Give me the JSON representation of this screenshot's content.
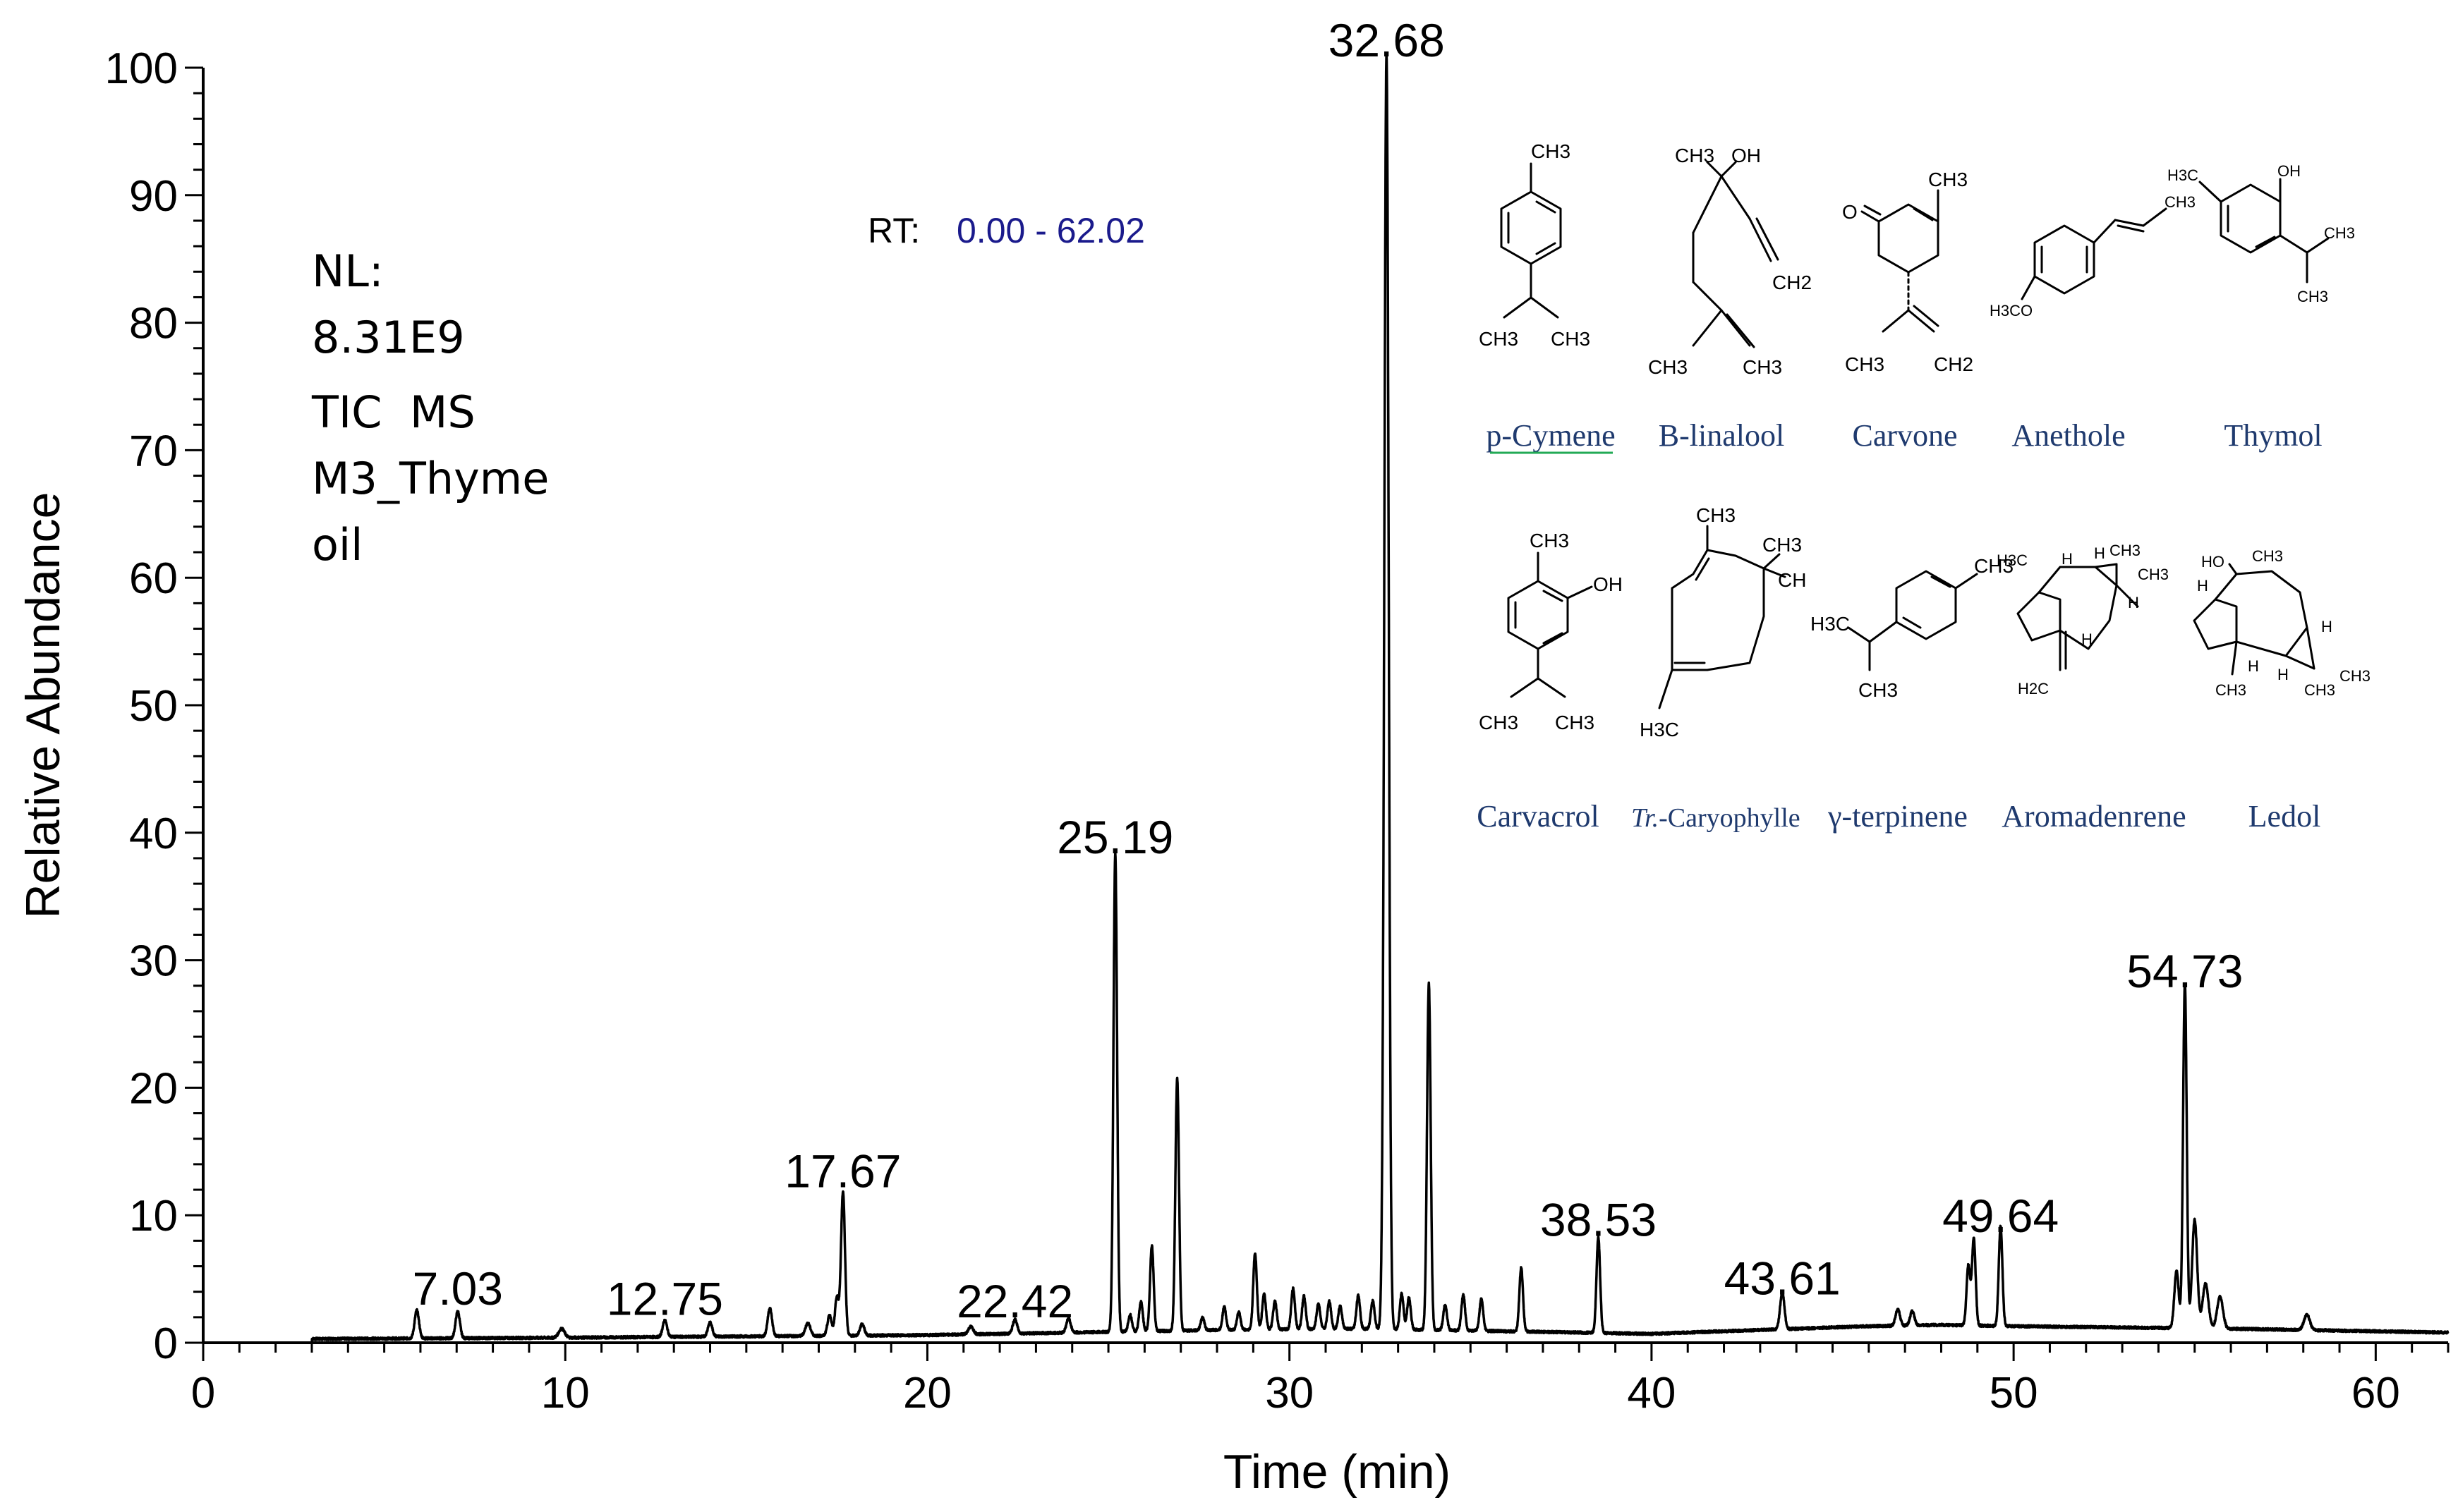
{
  "chart_data": {
    "type": "line",
    "xlabel": "Time (min)",
    "ylabel": "Relative Abundance",
    "xlim": [
      0,
      62
    ],
    "ylim": [
      0,
      100
    ],
    "x_ticks": [
      0,
      10,
      20,
      30,
      40,
      50,
      60
    ],
    "y_ticks": [
      0,
      10,
      20,
      30,
      40,
      50,
      60,
      70,
      80,
      90,
      100
    ],
    "grid": false,
    "line_color": "#000000",
    "baseline": [
      [
        3.0,
        0.3
      ],
      [
        10,
        0.4
      ],
      [
        20,
        0.6
      ],
      [
        24,
        0.8
      ],
      [
        28,
        1.0
      ],
      [
        32,
        1.1
      ],
      [
        36,
        0.9
      ],
      [
        40,
        0.7
      ],
      [
        43,
        1.0
      ],
      [
        46,
        1.3
      ],
      [
        48,
        1.4
      ],
      [
        50,
        1.3
      ],
      [
        53,
        1.2
      ],
      [
        56,
        1.1
      ],
      [
        60,
        0.9
      ],
      [
        62,
        0.8
      ]
    ],
    "peaks": [
      {
        "rt": 5.9,
        "height": 2.2,
        "width": 0.06
      },
      {
        "rt": 7.03,
        "height": 2.1,
        "width": 0.06
      },
      {
        "rt": 9.9,
        "height": 0.7,
        "width": 0.08
      },
      {
        "rt": 12.75,
        "height": 1.3,
        "width": 0.06
      },
      {
        "rt": 14.0,
        "height": 1.1,
        "width": 0.06
      },
      {
        "rt": 15.65,
        "height": 2.2,
        "width": 0.06
      },
      {
        "rt": 16.7,
        "height": 1.0,
        "width": 0.07
      },
      {
        "rt": 17.3,
        "height": 1.6,
        "width": 0.06
      },
      {
        "rt": 17.5,
        "height": 3.0,
        "width": 0.05
      },
      {
        "rt": 17.67,
        "height": 11.3,
        "width": 0.055
      },
      {
        "rt": 18.2,
        "height": 0.9,
        "width": 0.06
      },
      {
        "rt": 21.2,
        "height": 0.6,
        "width": 0.07
      },
      {
        "rt": 22.42,
        "height": 1.1,
        "width": 0.06
      },
      {
        "rt": 23.9,
        "height": 1.1,
        "width": 0.06
      },
      {
        "rt": 25.19,
        "height": 37.5,
        "width": 0.05
      },
      {
        "rt": 25.6,
        "height": 1.3,
        "width": 0.05
      },
      {
        "rt": 25.9,
        "height": 2.3,
        "width": 0.05
      },
      {
        "rt": 26.2,
        "height": 6.7,
        "width": 0.05
      },
      {
        "rt": 26.9,
        "height": 19.8,
        "width": 0.05
      },
      {
        "rt": 27.6,
        "height": 1.0,
        "width": 0.05
      },
      {
        "rt": 28.2,
        "height": 1.8,
        "width": 0.05
      },
      {
        "rt": 28.6,
        "height": 1.4,
        "width": 0.05
      },
      {
        "rt": 29.05,
        "height": 6.0,
        "width": 0.05
      },
      {
        "rt": 29.3,
        "height": 2.8,
        "width": 0.05
      },
      {
        "rt": 29.6,
        "height": 2.2,
        "width": 0.05
      },
      {
        "rt": 30.1,
        "height": 3.2,
        "width": 0.05
      },
      {
        "rt": 30.4,
        "height": 2.6,
        "width": 0.05
      },
      {
        "rt": 30.8,
        "height": 2.0,
        "width": 0.05
      },
      {
        "rt": 31.1,
        "height": 2.2,
        "width": 0.05
      },
      {
        "rt": 31.4,
        "height": 1.8,
        "width": 0.05
      },
      {
        "rt": 31.9,
        "height": 2.6,
        "width": 0.05
      },
      {
        "rt": 32.3,
        "height": 2.2,
        "width": 0.05
      },
      {
        "rt": 32.68,
        "height": 100,
        "width": 0.06
      },
      {
        "rt": 33.1,
        "height": 2.8,
        "width": 0.05
      },
      {
        "rt": 33.3,
        "height": 2.5,
        "width": 0.05
      },
      {
        "rt": 33.85,
        "height": 27.2,
        "width": 0.05
      },
      {
        "rt": 34.3,
        "height": 2.0,
        "width": 0.05
      },
      {
        "rt": 34.8,
        "height": 2.8,
        "width": 0.05
      },
      {
        "rt": 35.3,
        "height": 2.5,
        "width": 0.05
      },
      {
        "rt": 36.4,
        "height": 5.0,
        "width": 0.05
      },
      {
        "rt": 38.53,
        "height": 7.5,
        "width": 0.05
      },
      {
        "rt": 43.61,
        "height": 2.9,
        "width": 0.06
      },
      {
        "rt": 46.8,
        "height": 1.3,
        "width": 0.06
      },
      {
        "rt": 47.2,
        "height": 1.1,
        "width": 0.06
      },
      {
        "rt": 48.75,
        "height": 4.7,
        "width": 0.05
      },
      {
        "rt": 48.9,
        "height": 6.8,
        "width": 0.05
      },
      {
        "rt": 49.64,
        "height": 7.8,
        "width": 0.05
      },
      {
        "rt": 54.5,
        "height": 4.5,
        "width": 0.06
      },
      {
        "rt": 54.73,
        "height": 27.0,
        "width": 0.05
      },
      {
        "rt": 55.0,
        "height": 8.5,
        "width": 0.07
      },
      {
        "rt": 55.3,
        "height": 3.5,
        "width": 0.08
      },
      {
        "rt": 55.7,
        "height": 2.5,
        "width": 0.08
      },
      {
        "rt": 58.1,
        "height": 1.2,
        "width": 0.08
      }
    ],
    "peak_labels": [
      {
        "text": "7.03",
        "rt": 7.03,
        "height": 2.1
      },
      {
        "text": "12.75",
        "rt": 12.75,
        "height": 1.3
      },
      {
        "text": "17.67",
        "rt": 17.67,
        "height": 11.3
      },
      {
        "text": "22.42",
        "rt": 22.42,
        "height": 1.1
      },
      {
        "text": "25.19",
        "rt": 25.19,
        "height": 37.5
      },
      {
        "text": "32.68",
        "rt": 32.68,
        "height": 100
      },
      {
        "text": "38.53",
        "rt": 38.53,
        "height": 7.5
      },
      {
        "text": "43.61",
        "rt": 43.61,
        "height": 2.9
      },
      {
        "text": "49.64",
        "rt": 49.64,
        "height": 7.8
      },
      {
        "text": "54.73",
        "rt": 54.73,
        "height": 27.0
      }
    ]
  },
  "info": {
    "nl_label": "NL:",
    "nl_value": "8.31E9",
    "scan_type": "TIC  MS",
    "sample_line1": "M3_Thyme",
    "sample_line2": "oil",
    "rt_label": "RT:",
    "rt_range": "0.00 - 62.02",
    "rt_label_color": "#000000",
    "rt_range_color": "#1a1a8c"
  },
  "structures": {
    "name_color": "#1f3a6e",
    "cymene_name_color": "#1f3a6e",
    "underline_color": "#22aa55",
    "names": {
      "p_cymene": "p-Cymene",
      "b_linalool": "B-linalool",
      "carvone": "Carvone",
      "anethole": "Anethole",
      "thymol": "Thymol",
      "carvacrol": "Carvacrol",
      "tr_prefix": "Tr.",
      "caryophyllene": "-Caryophylle",
      "g_terpinene": "γ-terpinene",
      "aromadenrene": "Aromadenrene",
      "ledol": "Ledol"
    },
    "atoms": {
      "ch3": "CH3",
      "ch2": "CH2",
      "oh": "OH",
      "o": "O",
      "h3c": "H3C",
      "h2c": "H2C",
      "h3co": "H3CO",
      "ho": "HO",
      "h": "H",
      "ch_trunc": "CH"
    }
  }
}
